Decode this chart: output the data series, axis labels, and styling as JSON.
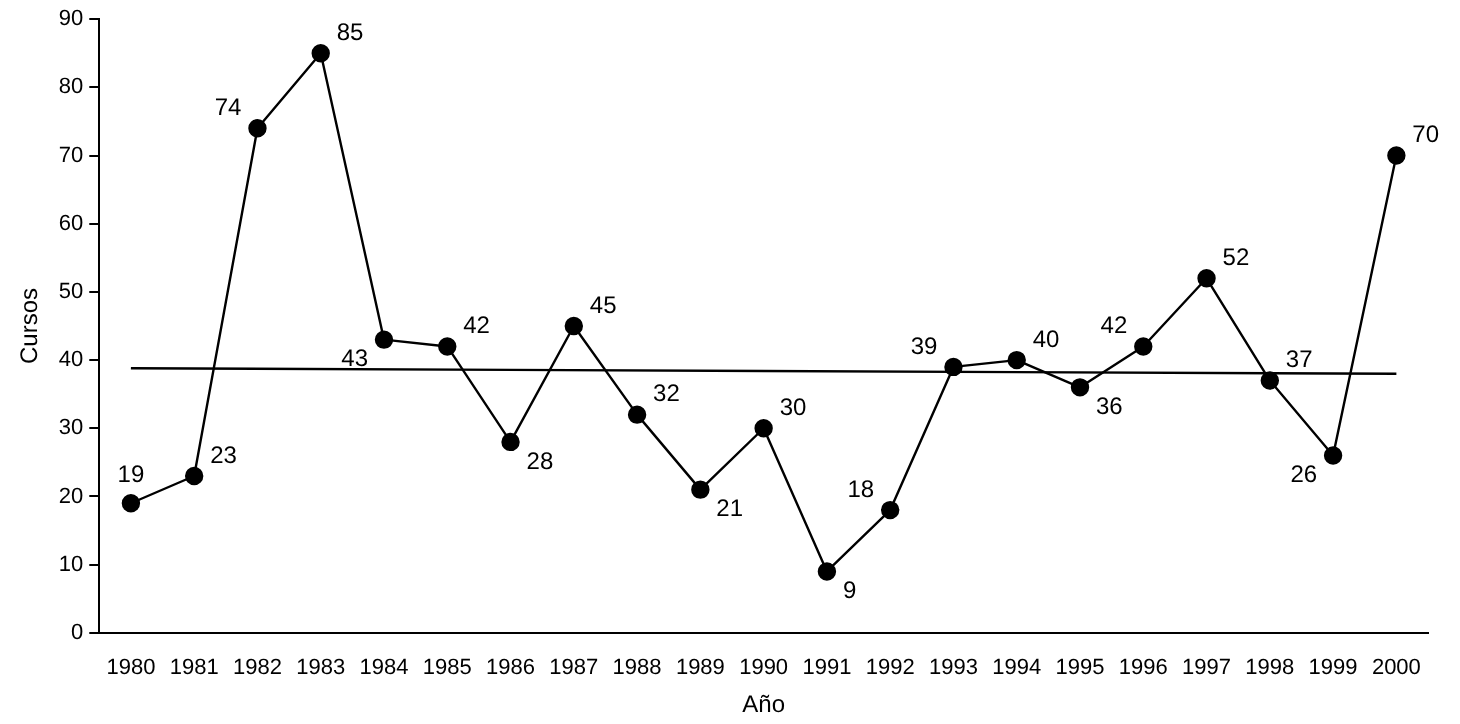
{
  "chart_data": {
    "type": "line",
    "xlabel": "Año",
    "ylabel": "Cursos",
    "categories": [
      "1980",
      "1981",
      "1982",
      "1983",
      "1984",
      "1985",
      "1986",
      "1987",
      "1988",
      "1989",
      "1990",
      "1991",
      "1992",
      "1993",
      "1994",
      "1995",
      "1996",
      "1997",
      "1998",
      "1999",
      "2000"
    ],
    "series": [
      {
        "color": "#000000",
        "values": [
          19,
          23,
          74,
          85,
          43,
          42,
          28,
          45,
          32,
          21,
          30,
          9,
          18,
          39,
          40,
          36,
          42,
          52,
          37,
          26,
          70
        ],
        "value_labels": [
          "19",
          "23",
          "74",
          "85",
          "43",
          "42",
          "28",
          "45",
          "32",
          "21",
          "30",
          "9",
          "18",
          "39",
          "40",
          "36",
          "42",
          "52",
          "37",
          "26",
          "70"
        ]
      },
      {
        "type": "line",
        "color": "#000000",
        "marker": "none",
        "values": [
          38.8,
          null,
          null,
          null,
          null,
          null,
          null,
          null,
          null,
          null,
          null,
          null,
          null,
          null,
          null,
          null,
          null,
          null,
          null,
          null,
          38.0
        ]
      }
    ],
    "ylim": [
      0,
      90
    ],
    "yticks": [
      0,
      10,
      20,
      30,
      40,
      50,
      60,
      70,
      80,
      90
    ],
    "grid": false,
    "legend": false,
    "marker": "circle",
    "line_style": "solid"
  }
}
